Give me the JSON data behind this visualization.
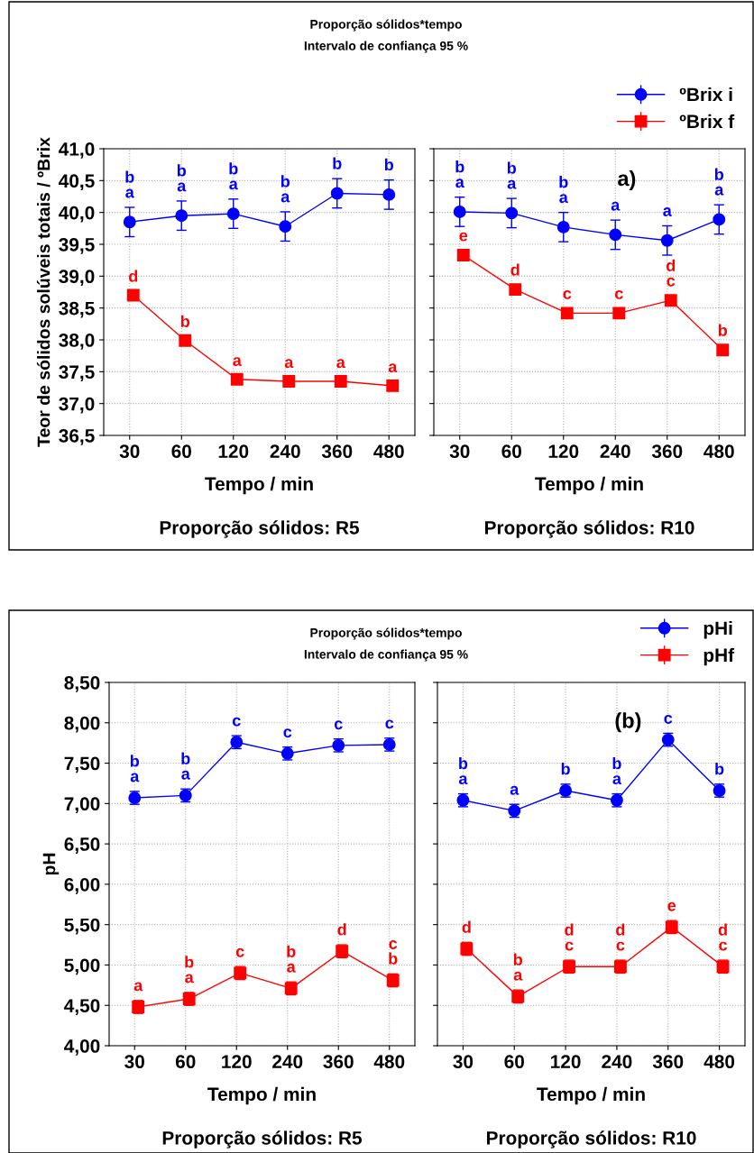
{
  "chart_data": [
    {
      "type": "line",
      "title": "Proporção sólidos*tempo",
      "subtitle": "Intervalo de confiança 95 %",
      "ylabel": "Teor de sólidos solúveis totais / ºBrix",
      "xlabel": "Tempo / min",
      "categories": [
        "30",
        "60",
        "120",
        "240",
        "360",
        "480"
      ],
      "ylim": [
        36.5,
        41.0
      ],
      "yticks": [
        {
          "value": 36.5,
          "label": "36,5"
        },
        {
          "value": 37.0,
          "label": "37,0"
        },
        {
          "value": 37.5,
          "label": "37,5"
        },
        {
          "value": 38.0,
          "label": "38,0"
        },
        {
          "value": 38.5,
          "label": "38,5"
        },
        {
          "value": 39.0,
          "label": "39,0"
        },
        {
          "value": 39.5,
          "label": "39,5"
        },
        {
          "value": 40.0,
          "label": "40,0"
        },
        {
          "value": 40.5,
          "label": "40,5"
        },
        {
          "value": 41.0,
          "label": "41,0"
        }
      ],
      "grid": true,
      "line_style": "solid",
      "series": [
        {
          "color": "#0000ff",
          "marker": "circle",
          "values": [
            39.85,
            39.95,
            39.98,
            39.78,
            40.3,
            40.28
          ],
          "errors": [
            0.23,
            0.23,
            0.23,
            0.23,
            0.23,
            0.23
          ],
          "value_labels": [
            "b\na",
            "b\na",
            "b\na",
            "b\na",
            "b",
            "b"
          ]
        },
        {
          "color": "#ff0000",
          "marker": "square",
          "values": [
            38.7,
            37.99,
            37.38,
            37.35,
            37.35,
            37.28
          ],
          "errors": [
            0.06,
            0.06,
            0.06,
            0.06,
            0.06,
            0.06
          ],
          "value_labels": [
            "d",
            "b",
            "a",
            "a",
            "a",
            "a"
          ]
        }
      ],
      "annotations": [
        "Proporção sólidos: R5"
      ]
    },
    {
      "type": "line",
      "xlabel": "Tempo / min",
      "legend": "top right",
      "tick_labels": "x",
      "categories": [
        "30",
        "60",
        "120",
        "240",
        "360",
        "480"
      ],
      "ylim": [
        36.5,
        41.0
      ],
      "yticks": [
        {
          "value": 36.5,
          "label": null
        },
        {
          "value": 37.0,
          "label": null
        },
        {
          "value": 37.5,
          "label": null
        },
        {
          "value": 38.0,
          "label": null
        },
        {
          "value": 38.5,
          "label": null
        },
        {
          "value": 39.0,
          "label": null
        },
        {
          "value": 39.5,
          "label": null
        },
        {
          "value": 40.0,
          "label": null
        },
        {
          "value": 40.5,
          "label": null
        },
        {
          "value": 41.0,
          "label": null
        }
      ],
      "grid": true,
      "line_style": "solid",
      "series": [
        {
          "name": "ºBrix i",
          "color": "#0000ff",
          "marker": "circle",
          "values": [
            40.01,
            39.99,
            39.77,
            39.65,
            39.56,
            39.89
          ],
          "errors": [
            0.23,
            0.23,
            0.23,
            0.23,
            0.23,
            0.23
          ],
          "value_labels": [
            "b\na",
            "b\na",
            "b\na",
            "a",
            "a",
            "b\na"
          ]
        },
        {
          "name": "ºBrix f",
          "color": "#ff0000",
          "marker": "square",
          "values": [
            39.33,
            38.79,
            38.42,
            38.42,
            38.62,
            37.84
          ],
          "errors": [
            0.07,
            0.07,
            0.07,
            0.07,
            0.07,
            0.07
          ],
          "value_labels": [
            "e",
            "d",
            "c",
            "c",
            "d\nc",
            "b"
          ]
        }
      ],
      "annotations": [
        "Proporção sólidos: R10",
        "a)"
      ]
    },
    {
      "type": "line",
      "title": "Proporção sólidos*tempo",
      "subtitle": "Intervalo de confiança 95 %",
      "ylabel": "pH",
      "xlabel": "Tempo / min",
      "categories": [
        "30",
        "60",
        "120",
        "240",
        "360",
        "480"
      ],
      "ylim": [
        4.0,
        8.5
      ],
      "yticks": [
        {
          "value": 4.0,
          "label": "4,00"
        },
        {
          "value": 4.5,
          "label": "4,50"
        },
        {
          "value": 5.0,
          "label": "5,00"
        },
        {
          "value": 5.5,
          "label": "5,50"
        },
        {
          "value": 6.0,
          "label": "6,00"
        },
        {
          "value": 6.5,
          "label": "6,50"
        },
        {
          "value": 7.0,
          "label": "7,00"
        },
        {
          "value": 7.5,
          "label": "7,50"
        },
        {
          "value": 8.0,
          "label": "8,00"
        },
        {
          "value": 8.5,
          "label": "8,50"
        }
      ],
      "grid": true,
      "line_style": "solid",
      "series": [
        {
          "color": "#0000ff",
          "marker": "circle",
          "values": [
            7.07,
            7.1,
            7.76,
            7.62,
            7.72,
            7.73
          ],
          "errors": [
            0.08,
            0.08,
            0.08,
            0.08,
            0.08,
            0.08
          ],
          "value_labels": [
            "b\na",
            "b\na",
            "c",
            "c",
            "c",
            "c"
          ]
        },
        {
          "color": "#ff0000",
          "marker": "square",
          "values": [
            4.48,
            4.58,
            4.9,
            4.71,
            5.17,
            4.81
          ],
          "errors": [
            0.08,
            0.08,
            0.08,
            0.08,
            0.08,
            0.08
          ],
          "value_labels": [
            "a",
            "b\na",
            "c",
            "b\na",
            "d",
            "c\nb"
          ]
        }
      ],
      "annotations": [
        "Proporção sólidos: R5"
      ]
    },
    {
      "type": "line",
      "xlabel": "Tempo / min",
      "legend": "top right",
      "tick_labels": "x",
      "categories": [
        "30",
        "60",
        "120",
        "240",
        "360",
        "480"
      ],
      "ylim": [
        4.0,
        8.5
      ],
      "yticks": [
        {
          "value": 4.0,
          "label": null
        },
        {
          "value": 4.5,
          "label": null
        },
        {
          "value": 5.0,
          "label": null
        },
        {
          "value": 5.5,
          "label": null
        },
        {
          "value": 6.0,
          "label": null
        },
        {
          "value": 6.5,
          "label": null
        },
        {
          "value": 7.0,
          "label": null
        },
        {
          "value": 7.5,
          "label": null
        },
        {
          "value": 8.0,
          "label": null
        },
        {
          "value": 8.5,
          "label": null
        }
      ],
      "grid": true,
      "line_style": "solid",
      "series": [
        {
          "name": "pHi",
          "color": "#0000ff",
          "marker": "circle",
          "values": [
            7.04,
            6.91,
            7.16,
            7.04,
            7.79,
            7.16
          ],
          "errors": [
            0.08,
            0.08,
            0.08,
            0.08,
            0.08,
            0.08
          ],
          "value_labels": [
            "b\na",
            "a",
            "b",
            "b\na",
            "c",
            "b"
          ]
        },
        {
          "name": "pHf",
          "color": "#ff0000",
          "marker": "square",
          "values": [
            5.2,
            4.61,
            4.98,
            4.98,
            5.47,
            4.98
          ],
          "errors": [
            0.08,
            0.08,
            0.08,
            0.08,
            0.08,
            0.08
          ],
          "value_labels": [
            "d",
            "b\na",
            "d\nc",
            "d\nc",
            "e",
            "d\nc"
          ]
        }
      ],
      "annotations": [
        "Proporção sólidos: R10",
        "(b)"
      ]
    }
  ]
}
